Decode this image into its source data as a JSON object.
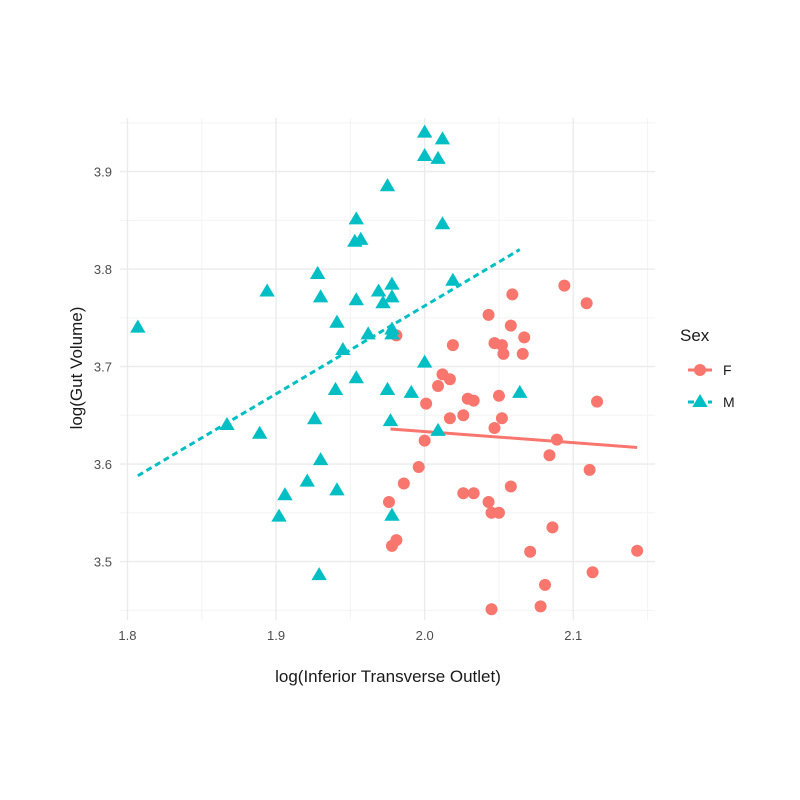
{
  "chart_data": {
    "type": "scatter",
    "xlabel": "log(Inferior Transverse Outlet)",
    "ylabel": "log(Gut Volume)",
    "xlim": [
      1.795,
      2.155
    ],
    "ylim": [
      3.44,
      3.955
    ],
    "x_ticks": [
      1.8,
      1.9,
      2.0,
      2.1
    ],
    "x_tick_labels": [
      "1.8",
      "1.9",
      "2.0",
      "2.1"
    ],
    "y_ticks": [
      3.5,
      3.6,
      3.7,
      3.8,
      3.9
    ],
    "y_tick_labels": [
      "3.5",
      "3.6",
      "3.7",
      "3.8",
      "3.9"
    ],
    "grid": true,
    "legend_position": "right",
    "legend_title": "Sex",
    "series": [
      {
        "name": "F",
        "color": "#F8766D",
        "marker": "circle",
        "fit_line": {
          "style": "solid",
          "x": [
            1.977,
            2.143
          ],
          "y": [
            3.636,
            3.617
          ]
        },
        "points": [
          [
            1.981,
            3.732
          ],
          [
            2.019,
            3.722
          ],
          [
            2.043,
            3.753
          ],
          [
            2.058,
            3.742
          ],
          [
            2.059,
            3.774
          ],
          [
            2.094,
            3.783
          ],
          [
            2.109,
            3.765
          ],
          [
            2.047,
            3.724
          ],
          [
            2.052,
            3.722
          ],
          [
            2.053,
            3.713
          ],
          [
            2.067,
            3.73
          ],
          [
            2.066,
            3.713
          ],
          [
            2.012,
            3.692
          ],
          [
            2.017,
            3.687
          ],
          [
            2.009,
            3.68
          ],
          [
            2.001,
            3.662
          ],
          [
            2.017,
            3.647
          ],
          [
            2.026,
            3.65
          ],
          [
            2.029,
            3.667
          ],
          [
            2.033,
            3.665
          ],
          [
            2.05,
            3.67
          ],
          [
            2.052,
            3.647
          ],
          [
            2.047,
            3.637
          ],
          [
            2.0,
            3.624
          ],
          [
            2.089,
            3.625
          ],
          [
            2.084,
            3.609
          ],
          [
            2.116,
            3.664
          ],
          [
            2.111,
            3.594
          ],
          [
            1.996,
            3.597
          ],
          [
            1.986,
            3.58
          ],
          [
            2.026,
            3.57
          ],
          [
            2.033,
            3.57
          ],
          [
            2.058,
            3.577
          ],
          [
            1.976,
            3.561
          ],
          [
            2.043,
            3.561
          ],
          [
            2.045,
            3.55
          ],
          [
            2.05,
            3.55
          ],
          [
            1.981,
            3.522
          ],
          [
            1.978,
            3.516
          ],
          [
            2.086,
            3.535
          ],
          [
            2.071,
            3.51
          ],
          [
            2.143,
            3.511
          ],
          [
            2.113,
            3.489
          ],
          [
            2.081,
            3.476
          ],
          [
            2.078,
            3.454
          ],
          [
            2.045,
            3.451
          ]
        ]
      },
      {
        "name": "M",
        "color": "#00BFC4",
        "marker": "triangle",
        "fit_line": {
          "style": "dashed",
          "x": [
            1.807,
            2.064
          ],
          "y": [
            3.588,
            3.82
          ]
        },
        "points": [
          [
            1.807,
            3.74
          ],
          [
            2.0,
            3.94
          ],
          [
            2.012,
            3.933
          ],
          [
            2.0,
            3.916
          ],
          [
            2.009,
            3.913
          ],
          [
            1.975,
            3.885
          ],
          [
            1.954,
            3.851
          ],
          [
            2.012,
            3.846
          ],
          [
            1.957,
            3.83
          ],
          [
            1.953,
            3.828
          ],
          [
            1.928,
            3.795
          ],
          [
            2.019,
            3.788
          ],
          [
            1.978,
            3.784
          ],
          [
            1.969,
            3.777
          ],
          [
            1.894,
            3.777
          ],
          [
            1.93,
            3.771
          ],
          [
            1.954,
            3.768
          ],
          [
            1.978,
            3.771
          ],
          [
            1.972,
            3.765
          ],
          [
            1.941,
            3.745
          ],
          [
            1.962,
            3.733
          ],
          [
            1.978,
            3.733
          ],
          [
            1.978,
            3.738
          ],
          [
            1.945,
            3.717
          ],
          [
            2.0,
            3.704
          ],
          [
            1.954,
            3.688
          ],
          [
            1.94,
            3.676
          ],
          [
            1.975,
            3.676
          ],
          [
            1.991,
            3.673
          ],
          [
            2.064,
            3.673
          ],
          [
            1.926,
            3.646
          ],
          [
            1.977,
            3.644
          ],
          [
            1.867,
            3.64
          ],
          [
            1.889,
            3.631
          ],
          [
            2.009,
            3.634
          ],
          [
            1.93,
            3.604
          ],
          [
            1.921,
            3.582
          ],
          [
            1.906,
            3.568
          ],
          [
            1.941,
            3.573
          ],
          [
            1.902,
            3.546
          ],
          [
            1.978,
            3.547
          ],
          [
            1.929,
            3.486
          ]
        ]
      }
    ]
  }
}
